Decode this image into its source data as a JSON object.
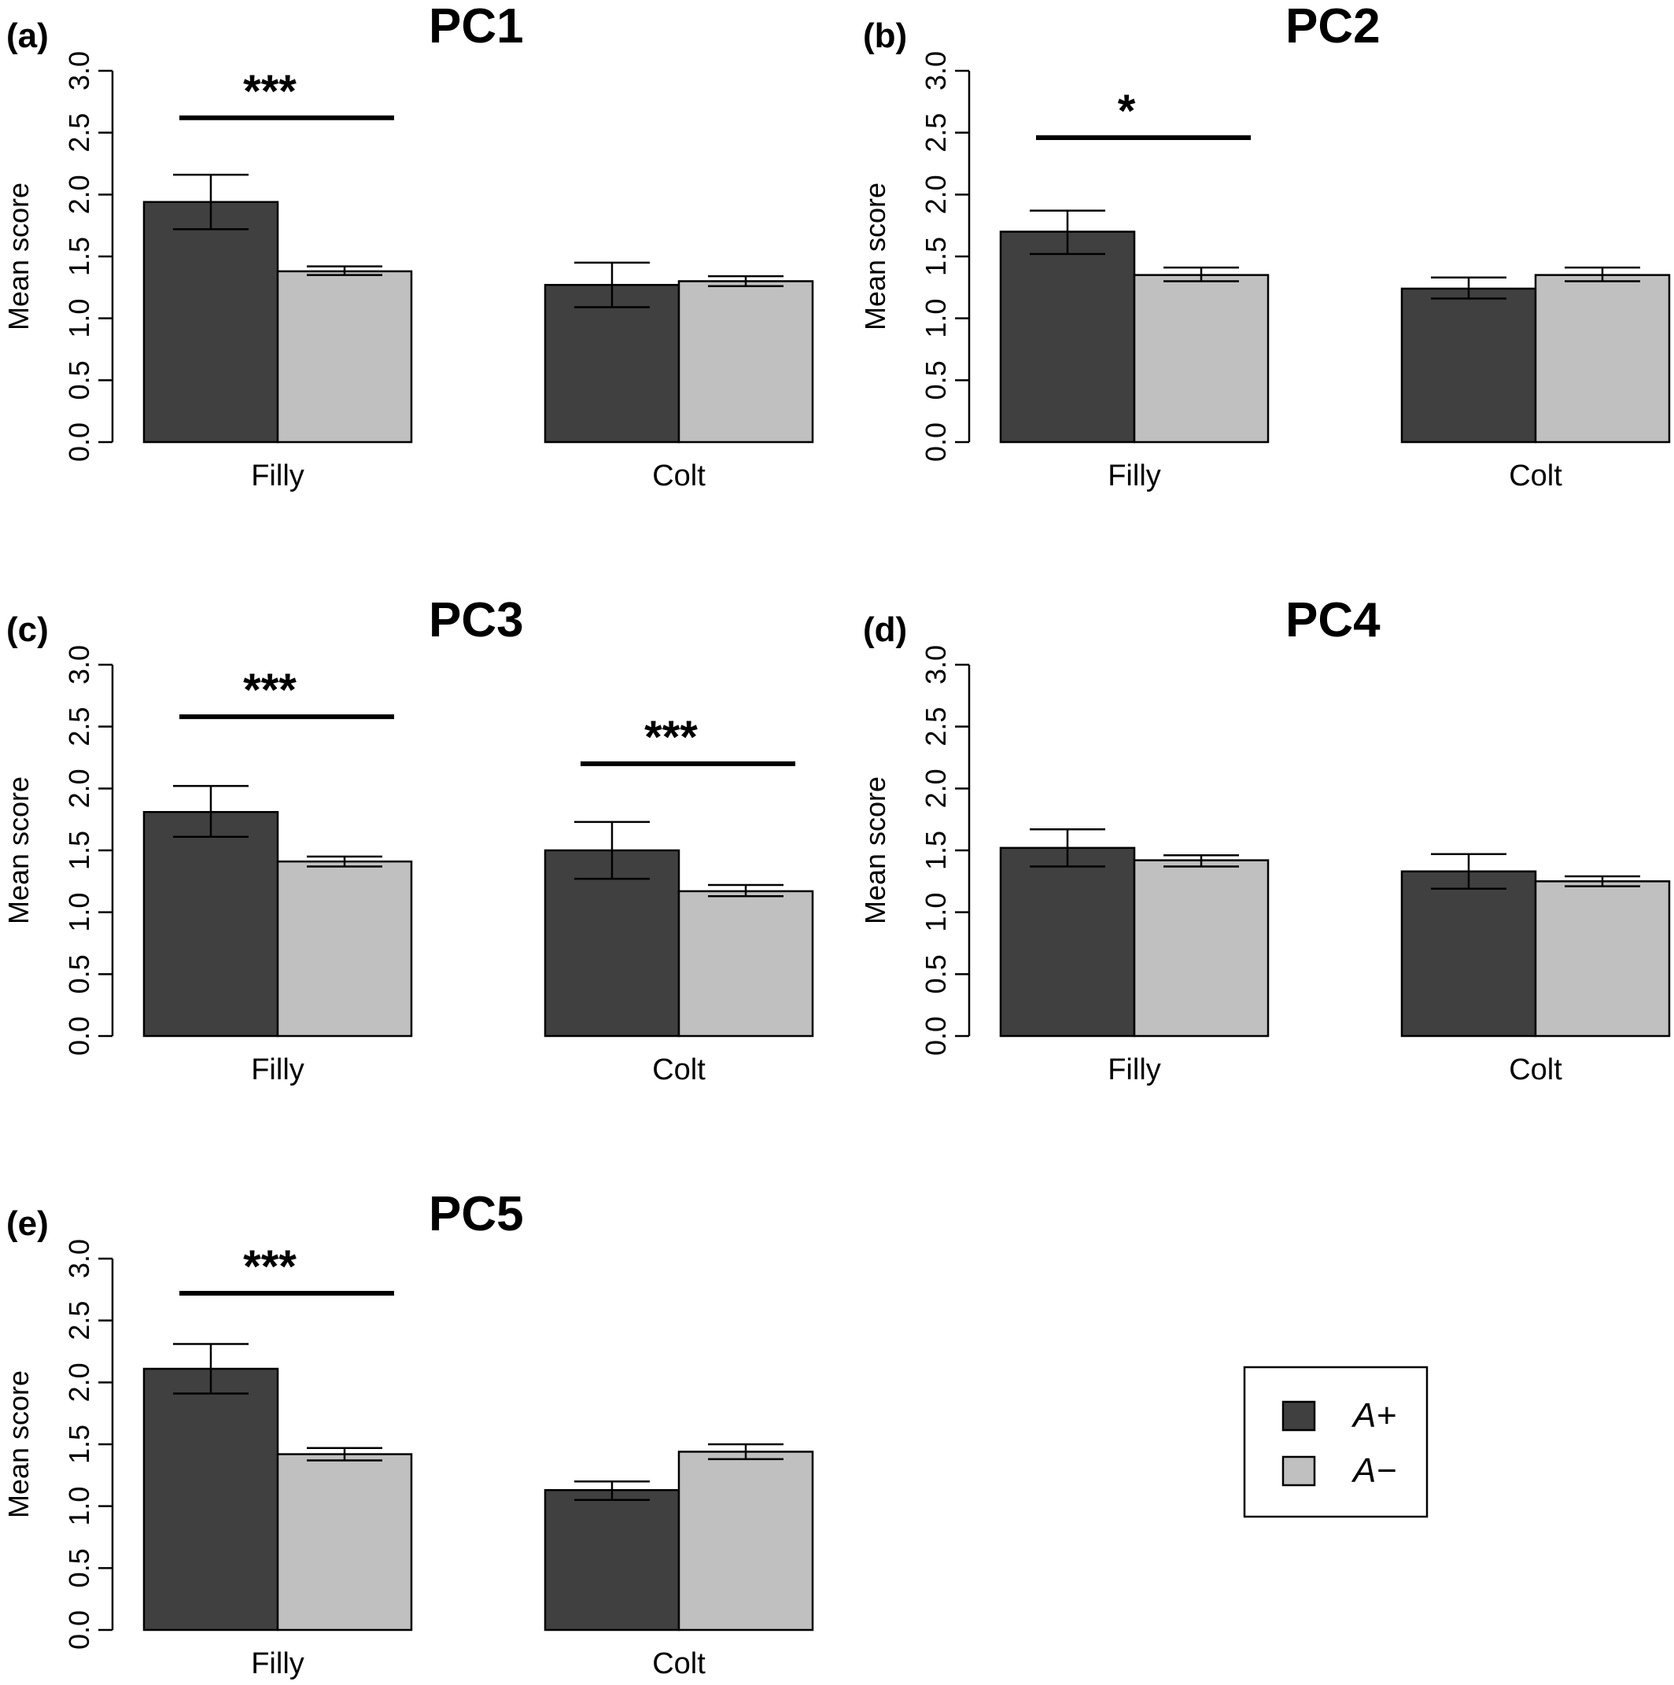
{
  "figure": {
    "series": [
      {
        "name": "A+",
        "color": "#404040"
      },
      {
        "name": "A−",
        "color": "#c0c0c0"
      }
    ],
    "legend": {
      "placement": "bottom-right",
      "labels": [
        "A+",
        "A−"
      ]
    }
  },
  "chart_data": [
    {
      "type": "bar",
      "panel_label": "(a)",
      "title": "PC1",
      "ylabel": "Mean score",
      "ylim": [
        0,
        3
      ],
      "yticks": [
        "0.0",
        "0.5",
        "1.0",
        "1.5",
        "2.0",
        "2.5",
        "3.0"
      ],
      "categories": [
        "Filly",
        "Colt"
      ],
      "series": [
        {
          "name": "A+",
          "values": [
            1.94,
            1.27
          ],
          "err_low": [
            1.72,
            1.09
          ],
          "err_high": [
            2.16,
            1.45
          ]
        },
        {
          "name": "A−",
          "values": [
            1.38,
            1.3
          ],
          "err_low": [
            1.35,
            1.26
          ],
          "err_high": [
            1.42,
            1.34
          ]
        }
      ],
      "significance": [
        {
          "category": "Filly",
          "label": "***",
          "y": 2.62
        },
        null
      ]
    },
    {
      "type": "bar",
      "panel_label": "(b)",
      "title": "PC2",
      "ylabel": "Mean score",
      "ylim": [
        0,
        3
      ],
      "yticks": [
        "0.0",
        "0.5",
        "1.0",
        "1.5",
        "2.0",
        "2.5",
        "3.0"
      ],
      "categories": [
        "Filly",
        "Colt"
      ],
      "series": [
        {
          "name": "A+",
          "values": [
            1.7,
            1.24
          ],
          "err_low": [
            1.52,
            1.16
          ],
          "err_high": [
            1.87,
            1.33
          ]
        },
        {
          "name": "A−",
          "values": [
            1.35,
            1.35
          ],
          "err_low": [
            1.3,
            1.3
          ],
          "err_high": [
            1.41,
            1.41
          ]
        }
      ],
      "significance": [
        {
          "category": "Filly",
          "label": "*",
          "y": 2.46
        },
        null
      ]
    },
    {
      "type": "bar",
      "panel_label": "(c)",
      "title": "PC3",
      "ylabel": "Mean score",
      "ylim": [
        0,
        3
      ],
      "yticks": [
        "0.0",
        "0.5",
        "1.0",
        "1.5",
        "2.0",
        "2.5",
        "3.0"
      ],
      "categories": [
        "Filly",
        "Colt"
      ],
      "series": [
        {
          "name": "A+",
          "values": [
            1.81,
            1.5
          ],
          "err_low": [
            1.61,
            1.27
          ],
          "err_high": [
            2.02,
            1.73
          ]
        },
        {
          "name": "A−",
          "values": [
            1.41,
            1.17
          ],
          "err_low": [
            1.37,
            1.13
          ],
          "err_high": [
            1.45,
            1.22
          ]
        }
      ],
      "significance": [
        {
          "category": "Filly",
          "label": "***",
          "y": 2.58
        },
        {
          "category": "Colt",
          "label": "***",
          "y": 2.2
        }
      ]
    },
    {
      "type": "bar",
      "panel_label": "(d)",
      "title": "PC4",
      "ylabel": "Mean score",
      "ylim": [
        0,
        3
      ],
      "yticks": [
        "0.0",
        "0.5",
        "1.0",
        "1.5",
        "2.0",
        "2.5",
        "3.0"
      ],
      "categories": [
        "Filly",
        "Colt"
      ],
      "series": [
        {
          "name": "A+",
          "values": [
            1.52,
            1.33
          ],
          "err_low": [
            1.37,
            1.19
          ],
          "err_high": [
            1.67,
            1.47
          ]
        },
        {
          "name": "A−",
          "values": [
            1.42,
            1.25
          ],
          "err_low": [
            1.37,
            1.21
          ],
          "err_high": [
            1.46,
            1.29
          ]
        }
      ],
      "significance": [
        null,
        null
      ]
    },
    {
      "type": "bar",
      "panel_label": "(e)",
      "title": "PC5",
      "ylabel": "Mean score",
      "ylim": [
        0,
        3
      ],
      "yticks": [
        "0.0",
        "0.5",
        "1.0",
        "1.5",
        "2.0",
        "2.5",
        "3.0"
      ],
      "categories": [
        "Filly",
        "Colt"
      ],
      "series": [
        {
          "name": "A+",
          "values": [
            2.11,
            1.13
          ],
          "err_low": [
            1.91,
            1.05
          ],
          "err_high": [
            2.31,
            1.2
          ]
        },
        {
          "name": "A−",
          "values": [
            1.42,
            1.44
          ],
          "err_low": [
            1.37,
            1.38
          ],
          "err_high": [
            1.47,
            1.5
          ]
        }
      ],
      "significance": [
        {
          "category": "Filly",
          "label": "***",
          "y": 2.72
        },
        null
      ]
    }
  ]
}
